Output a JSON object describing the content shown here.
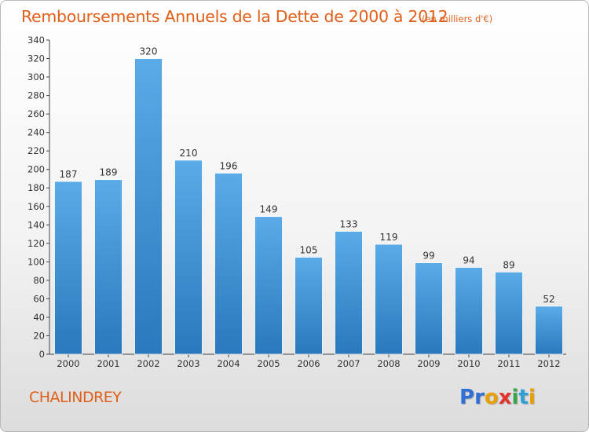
{
  "title": "Remboursements Annuels de la Dette de 2000 à 2012",
  "unit": "(en milliers d'€)",
  "commune": "CHALINDREY",
  "logo": {
    "letters": [
      "P",
      "r",
      "o",
      "x",
      "i",
      "t",
      "i"
    ],
    "colors": [
      "#2f6fd6",
      "#2f6fd6",
      "#e8a000",
      "#e2332a",
      "#3aa54a",
      "#2f9fd6",
      "#e8a000"
    ]
  },
  "colors": {
    "bar_light": "#5aabe8",
    "bar_dark": "#2a78bd",
    "title": "#e0601a"
  },
  "chart_data": {
    "type": "bar",
    "categories": [
      "2000",
      "2001",
      "2002",
      "2003",
      "2004",
      "2005",
      "2006",
      "2007",
      "2008",
      "2009",
      "2010",
      "2011",
      "2012"
    ],
    "values": [
      187,
      189,
      320,
      210,
      196,
      149,
      105,
      133,
      119,
      99,
      94,
      89,
      52
    ],
    "ylim": [
      0,
      340
    ],
    "yticks": [
      0,
      20,
      40,
      60,
      80,
      100,
      120,
      140,
      160,
      180,
      200,
      220,
      240,
      260,
      280,
      300,
      320,
      340
    ],
    "grid": false,
    "legend": "none"
  }
}
